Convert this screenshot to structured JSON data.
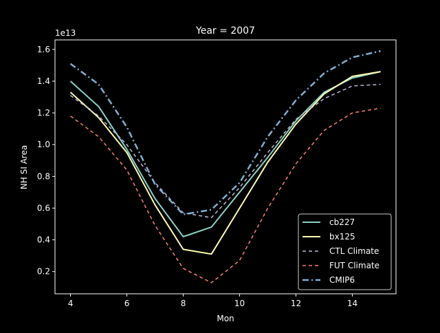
{
  "chart_data": {
    "type": "line",
    "title": "Year = 2007",
    "xlabel": "Mon",
    "ylabel": "NH SI Area",
    "offset_text": "1e13",
    "xlim": [
      3.45,
      15.55
    ],
    "ylim": [
      0.06,
      1.66
    ],
    "xticks": [
      4,
      6,
      8,
      10,
      12,
      14
    ],
    "xtick_labels": [
      "4",
      "6",
      "8",
      "10",
      "12",
      "14"
    ],
    "yticks": [
      0.2,
      0.4,
      0.6,
      0.8,
      1.0,
      1.2,
      1.4,
      1.6
    ],
    "ytick_labels": [
      "0.2",
      "0.4",
      "0.6",
      "0.8",
      "1.0",
      "1.2",
      "1.4",
      "1.6"
    ],
    "grid": false,
    "legend_position": "lower-right",
    "x": [
      4,
      5,
      6,
      7,
      8,
      9,
      10,
      11,
      12,
      13,
      14,
      15
    ],
    "series": [
      {
        "name": "cb227",
        "color": "#8dd3c7",
        "style": "solid",
        "width": 2,
        "values": [
          1.4,
          1.24,
          0.97,
          0.66,
          0.42,
          0.48,
          0.7,
          0.92,
          1.15,
          1.33,
          1.42,
          1.46
        ]
      },
      {
        "name": "bx125",
        "color": "#ffffb3",
        "style": "solid",
        "width": 2,
        "values": [
          1.33,
          1.17,
          0.95,
          0.62,
          0.34,
          0.31,
          0.6,
          0.89,
          1.13,
          1.32,
          1.43,
          1.46
        ]
      },
      {
        "name": "CTL Climate",
        "color": "#bebada",
        "style": "dashed",
        "width": 1.5,
        "values": [
          1.31,
          1.18,
          1.0,
          0.76,
          0.57,
          0.54,
          0.73,
          0.95,
          1.16,
          1.29,
          1.37,
          1.38
        ]
      },
      {
        "name": "FUT Climate",
        "color": "#fb8072",
        "style": "dashed",
        "width": 1.5,
        "values": [
          1.18,
          1.05,
          0.84,
          0.49,
          0.22,
          0.13,
          0.27,
          0.6,
          0.88,
          1.09,
          1.2,
          1.23
        ]
      },
      {
        "name": "CMIP6",
        "color": "#80b1d3",
        "style": "dashdot",
        "width": 2.5,
        "values": [
          1.51,
          1.38,
          1.11,
          0.75,
          0.56,
          0.59,
          0.76,
          1.05,
          1.28,
          1.45,
          1.55,
          1.59
        ]
      }
    ]
  }
}
